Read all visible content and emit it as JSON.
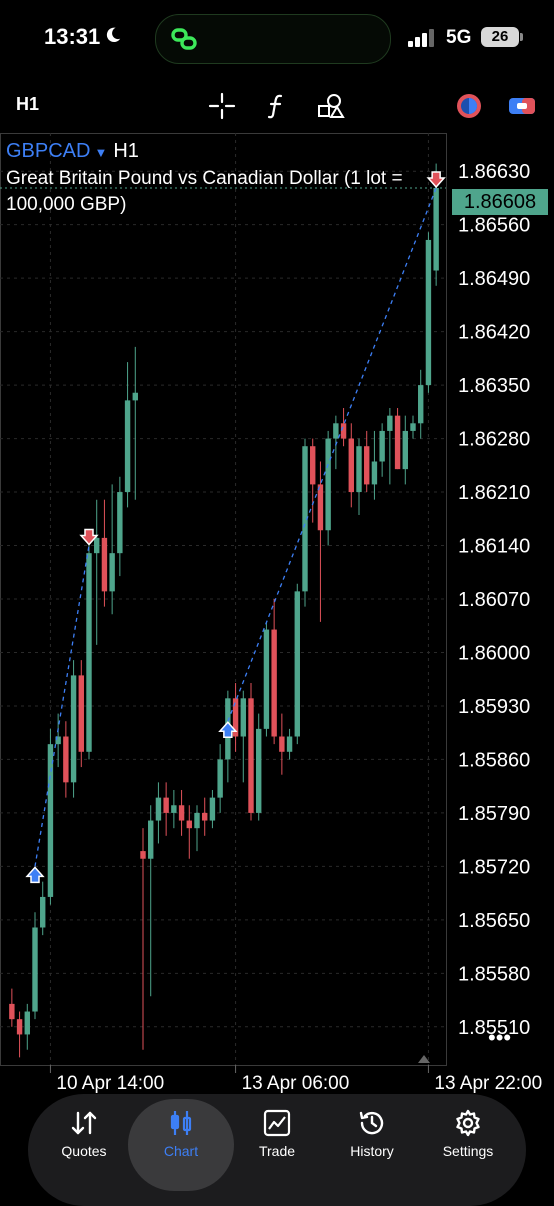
{
  "status_bar": {
    "time": "13:31",
    "network": "5G",
    "battery": "26"
  },
  "toolbar": {
    "timeframe": "H1"
  },
  "symbol": {
    "name": "GBPCAD",
    "timeframe": "H1",
    "description": "Great Britain Pound vs Canadian Dollar (1 lot = 100,000 GBP)"
  },
  "current_price": "1.86608",
  "more_icon": "•••",
  "chart_data": {
    "type": "candlestick",
    "price_axis": [
      "1.86630",
      "1.86560",
      "1.86490",
      "1.86420",
      "1.86350",
      "1.86280",
      "1.86210",
      "1.86140",
      "1.86070",
      "1.86000",
      "1.85930",
      "1.85860",
      "1.85790",
      "1.85720",
      "1.85650",
      "1.85580",
      "1.85510"
    ],
    "time_axis": [
      "10 Apr 14:00",
      "13 Apr 06:00",
      "13 Apr 22:00"
    ],
    "ylim": [
      1.8546,
      1.8668
    ],
    "candles": [
      {
        "o": 1.8554,
        "h": 1.8556,
        "l": 1.8551,
        "c": 1.8552
      },
      {
        "o": 1.8552,
        "h": 1.8553,
        "l": 1.8547,
        "c": 1.855
      },
      {
        "o": 1.855,
        "h": 1.8554,
        "l": 1.8548,
        "c": 1.8553
      },
      {
        "o": 1.8553,
        "h": 1.8566,
        "l": 1.8552,
        "c": 1.8564
      },
      {
        "o": 1.8564,
        "h": 1.857,
        "l": 1.8563,
        "c": 1.8568
      },
      {
        "o": 1.8568,
        "h": 1.859,
        "l": 1.8567,
        "c": 1.8588
      },
      {
        "o": 1.8588,
        "h": 1.8592,
        "l": 1.8585,
        "c": 1.8589
      },
      {
        "o": 1.8589,
        "h": 1.8591,
        "l": 1.8581,
        "c": 1.8583
      },
      {
        "o": 1.8583,
        "h": 1.8599,
        "l": 1.8581,
        "c": 1.8597
      },
      {
        "o": 1.8597,
        "h": 1.8599,
        "l": 1.8585,
        "c": 1.8587
      },
      {
        "o": 1.8587,
        "h": 1.8615,
        "l": 1.8586,
        "c": 1.8613
      },
      {
        "o": 1.8613,
        "h": 1.862,
        "l": 1.8601,
        "c": 1.8615
      },
      {
        "o": 1.8615,
        "h": 1.862,
        "l": 1.8606,
        "c": 1.8608
      },
      {
        "o": 1.8608,
        "h": 1.8622,
        "l": 1.8605,
        "c": 1.8613
      },
      {
        "o": 1.8613,
        "h": 1.8623,
        "l": 1.861,
        "c": 1.8621
      },
      {
        "o": 1.8621,
        "h": 1.8638,
        "l": 1.8619,
        "c": 1.8633
      },
      {
        "o": 1.8633,
        "h": 1.864,
        "l": 1.862,
        "c": 1.8634
      },
      {
        "o": 1.8574,
        "h": 1.8577,
        "l": 1.8548,
        "c": 1.8573
      },
      {
        "o": 1.8573,
        "h": 1.858,
        "l": 1.8555,
        "c": 1.8578
      },
      {
        "o": 1.8578,
        "h": 1.8583,
        "l": 1.8575,
        "c": 1.8581
      },
      {
        "o": 1.8581,
        "h": 1.8583,
        "l": 1.8576,
        "c": 1.8579
      },
      {
        "o": 1.8579,
        "h": 1.8582,
        "l": 1.8577,
        "c": 1.858
      },
      {
        "o": 1.858,
        "h": 1.8582,
        "l": 1.8576,
        "c": 1.8578
      },
      {
        "o": 1.8578,
        "h": 1.858,
        "l": 1.8573,
        "c": 1.8577
      },
      {
        "o": 1.8577,
        "h": 1.858,
        "l": 1.8574,
        "c": 1.8579
      },
      {
        "o": 1.8579,
        "h": 1.8581,
        "l": 1.8576,
        "c": 1.8578
      },
      {
        "o": 1.8578,
        "h": 1.8582,
        "l": 1.8577,
        "c": 1.8581
      },
      {
        "o": 1.8581,
        "h": 1.8588,
        "l": 1.8579,
        "c": 1.8586
      },
      {
        "o": 1.8586,
        "h": 1.8595,
        "l": 1.8583,
        "c": 1.8594
      },
      {
        "o": 1.8594,
        "h": 1.8596,
        "l": 1.8587,
        "c": 1.8589
      },
      {
        "o": 1.8589,
        "h": 1.8595,
        "l": 1.8583,
        "c": 1.8594
      },
      {
        "o": 1.8594,
        "h": 1.8596,
        "l": 1.8578,
        "c": 1.8579
      },
      {
        "o": 1.8579,
        "h": 1.8592,
        "l": 1.8578,
        "c": 1.859
      },
      {
        "o": 1.859,
        "h": 1.8604,
        "l": 1.8589,
        "c": 1.8603
      },
      {
        "o": 1.8603,
        "h": 1.8607,
        "l": 1.8588,
        "c": 1.8589
      },
      {
        "o": 1.8589,
        "h": 1.8592,
        "l": 1.8584,
        "c": 1.8587
      },
      {
        "o": 1.8587,
        "h": 1.859,
        "l": 1.8586,
        "c": 1.8589
      },
      {
        "o": 1.8589,
        "h": 1.8609,
        "l": 1.8588,
        "c": 1.8608
      },
      {
        "o": 1.8608,
        "h": 1.8628,
        "l": 1.8606,
        "c": 1.8627
      },
      {
        "o": 1.8627,
        "h": 1.8628,
        "l": 1.8617,
        "c": 1.8622
      },
      {
        "o": 1.8622,
        "h": 1.8625,
        "l": 1.8604,
        "c": 1.8616
      },
      {
        "o": 1.8616,
        "h": 1.8629,
        "l": 1.8614,
        "c": 1.8628
      },
      {
        "o": 1.8628,
        "h": 1.8631,
        "l": 1.8624,
        "c": 1.863
      },
      {
        "o": 1.863,
        "h": 1.8632,
        "l": 1.8627,
        "c": 1.8628
      },
      {
        "o": 1.8628,
        "h": 1.863,
        "l": 1.8619,
        "c": 1.8621
      },
      {
        "o": 1.8621,
        "h": 1.8628,
        "l": 1.8618,
        "c": 1.8627
      },
      {
        "o": 1.8627,
        "h": 1.8629,
        "l": 1.8621,
        "c": 1.8622
      },
      {
        "o": 1.8622,
        "h": 1.8629,
        "l": 1.862,
        "c": 1.8625
      },
      {
        "o": 1.8625,
        "h": 1.863,
        "l": 1.8623,
        "c": 1.8629
      },
      {
        "o": 1.8629,
        "h": 1.8632,
        "l": 1.8622,
        "c": 1.8631
      },
      {
        "o": 1.8631,
        "h": 1.8632,
        "l": 1.8624,
        "c": 1.8624
      },
      {
        "o": 1.8624,
        "h": 1.8631,
        "l": 1.8622,
        "c": 1.8629
      },
      {
        "o": 1.8629,
        "h": 1.8631,
        "l": 1.8628,
        "c": 1.863
      },
      {
        "o": 1.863,
        "h": 1.8637,
        "l": 1.8628,
        "c": 1.8635
      },
      {
        "o": 1.8635,
        "h": 1.8655,
        "l": 1.8634,
        "c": 1.8654
      },
      {
        "o": 1.865,
        "h": 1.8664,
        "l": 1.8648,
        "c": 1.86608
      }
    ],
    "colors": {
      "bull": "#4fa58c",
      "bear": "#e0525a",
      "grid": "#2a2a2a",
      "trade_line": "#3d7ff5"
    },
    "trades": [
      {
        "open_index": 3,
        "open_price": 1.8572,
        "close_index": 10,
        "close_price": 1.8614,
        "open_dir": "buy",
        "close_dir": "sell"
      },
      {
        "open_index": 28,
        "open_price": 1.8591,
        "close_index": 55,
        "close_price": 1.86608,
        "open_dir": "buy",
        "close_dir": "sell"
      }
    ]
  },
  "nav": [
    {
      "label": "Quotes",
      "icon": "quotes-icon"
    },
    {
      "label": "Chart",
      "icon": "chart-icon",
      "active": true
    },
    {
      "label": "Trade",
      "icon": "trade-icon"
    },
    {
      "label": "History",
      "icon": "history-icon"
    },
    {
      "label": "Settings",
      "icon": "settings-icon"
    }
  ]
}
